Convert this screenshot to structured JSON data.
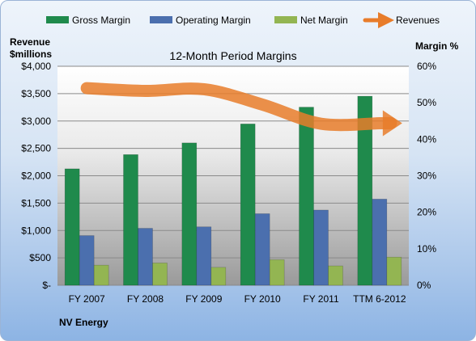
{
  "chart_data": {
    "type": "bar",
    "title": "12-Month Period Margins",
    "company": "NV Energy",
    "ylabel_left": [
      "Revenue",
      "$millions"
    ],
    "ylabel_right": "Margin %",
    "categories": [
      "FY 2007",
      "FY 2008",
      "FY 2009",
      "FY 2010",
      "FY 2011",
      "TTM 6-2012"
    ],
    "y_left_ticks": [
      "$-",
      "$500",
      "$1,000",
      "$1,500",
      "$2,000",
      "$2,500",
      "$3,000",
      "$3,500",
      "$4,000"
    ],
    "y_right_ticks": [
      "0%",
      "10%",
      "20%",
      "30%",
      "40%",
      "50%",
      "60%"
    ],
    "ylim_left": [
      0,
      4000
    ],
    "ylim_right": [
      0,
      60
    ],
    "legend_position": "top",
    "series": [
      {
        "name": "Gross Margin",
        "type": "bar",
        "axis": "right",
        "color": "#1f8a4c",
        "values": [
          31.9,
          35.8,
          39.0,
          44.2,
          48.8,
          51.8
        ]
      },
      {
        "name": "Operating Margin",
        "type": "bar",
        "axis": "right",
        "color": "#4b6fae",
        "values": [
          13.6,
          15.6,
          16.0,
          19.6,
          20.6,
          23.6
        ]
      },
      {
        "name": "Net Margin",
        "type": "bar",
        "axis": "right",
        "color": "#93b552",
        "values": [
          5.5,
          6.1,
          4.9,
          7.0,
          5.3,
          7.7
        ]
      },
      {
        "name": "Revenues",
        "type": "line",
        "axis": "left",
        "color": "#e87c2a",
        "values": [
          3600,
          3550,
          3580,
          3300,
          2950,
          2960
        ]
      }
    ]
  }
}
